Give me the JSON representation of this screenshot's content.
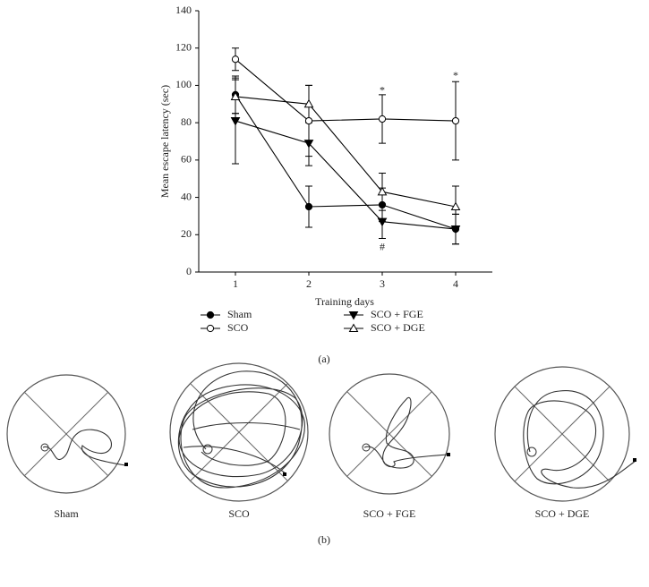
{
  "chart_data": {
    "type": "line",
    "y_label": "Mean escape latency (sec)",
    "x_label": "Training days",
    "x": [
      1,
      2,
      3,
      4
    ],
    "xlim": [
      0.5,
      4.5
    ],
    "xticks": [
      1,
      2,
      3,
      4
    ],
    "ylim": [
      0,
      140
    ],
    "yticks": [
      0,
      20,
      40,
      60,
      80,
      100,
      120,
      140
    ],
    "series": [
      {
        "name": "Sham",
        "color": "#000000",
        "marker": "circle",
        "filled": true,
        "values": [
          95,
          35,
          36,
          23
        ],
        "errors": [
          10,
          11,
          9,
          8
        ]
      },
      {
        "name": "SCO",
        "color": "#000000",
        "marker": "circle",
        "filled": false,
        "values": [
          114,
          81,
          82,
          81
        ],
        "errors": [
          6,
          19,
          13,
          21
        ]
      },
      {
        "name": "SCO + FGE",
        "color": "#000000",
        "marker": "triangle-down",
        "filled": true,
        "values": [
          81,
          69,
          27,
          23
        ],
        "errors": [
          23,
          12,
          9,
          8
        ]
      },
      {
        "name": "SCO + DGE",
        "color": "#000000",
        "marker": "triangle-up",
        "filled": false,
        "values": [
          94,
          90,
          43,
          35
        ],
        "errors": [
          9,
          10,
          10,
          11
        ]
      }
    ],
    "annotations": [
      {
        "text": "*",
        "x": 3,
        "y": 97
      },
      {
        "text": "*",
        "x": 4,
        "y": 105
      },
      {
        "text": "#",
        "x": 3,
        "y": 13
      }
    ],
    "caption": "(a)"
  },
  "panel_b": {
    "labels": [
      "Sham",
      "SCO",
      "SCO + FGE",
      "SCO + DGE"
    ],
    "caption": "(b)"
  }
}
